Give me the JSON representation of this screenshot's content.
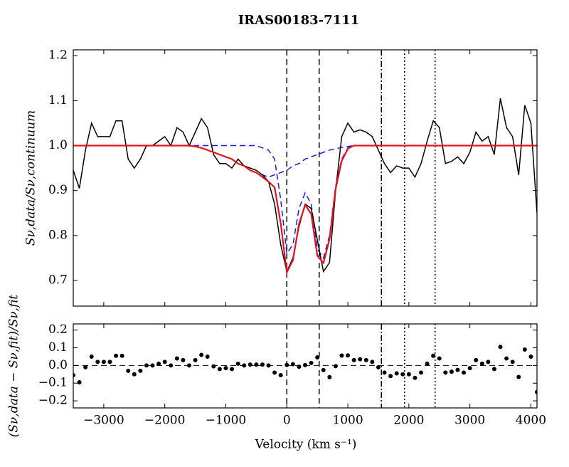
{
  "chart_data": [
    {
      "type": "line",
      "title": "IRAS00183-7111",
      "ylabel": "Sν,data/Sν,continuum",
      "xlim": [
        -3500,
        4100
      ],
      "ylim": [
        0.643,
        1.213
      ],
      "xticks": [
        -3000,
        -2000,
        -1000,
        0,
        1000,
        2000,
        3000,
        4000
      ],
      "yticks": [
        0.7,
        0.8,
        0.9,
        {
          "value": 1,
          "label": "1.0"
        },
        1.1,
        1.2
      ],
      "x": [
        -3500,
        -3400,
        -3300,
        -3200,
        -3100,
        -3000,
        -2900,
        -2800,
        -2700,
        -2600,
        -2500,
        -2400,
        -2300,
        -2200,
        -2100,
        -2000,
        -1900,
        -1800,
        -1700,
        -1600,
        -1500,
        -1400,
        -1300,
        -1200,
        -1100,
        -1000,
        -900,
        -800,
        -700,
        -600,
        -500,
        -400,
        -300,
        -200,
        -100,
        0,
        100,
        200,
        300,
        400,
        500,
        600,
        700,
        800,
        900,
        1000,
        1100,
        1200,
        1300,
        1400,
        1500,
        1600,
        1700,
        1800,
        1900,
        2000,
        2100,
        2200,
        2300,
        2400,
        2500,
        2600,
        2700,
        2800,
        2900,
        3000,
        3100,
        3200,
        3300,
        3400,
        3500,
        3600,
        3700,
        3800,
        3900,
        4000,
        4100
      ],
      "series": [
        {
          "color": "#1a1ad6",
          "style": "dashed",
          "width": 1.5,
          "values": [
            1,
            1,
            1,
            1,
            1,
            1,
            1,
            1,
            1,
            1,
            1,
            1,
            1,
            1,
            1,
            1,
            1,
            1,
            1,
            1,
            0.998,
            0.995,
            0.99,
            0.985,
            0.98,
            0.975,
            0.97,
            0.96,
            0.955,
            0.945,
            0.94,
            0.935,
            0.93,
            0.935,
            0.94,
            0.945,
            0.955,
            0.96,
            0.97,
            0.975,
            0.98,
            0.985,
            0.99,
            0.993,
            0.996,
            0.998,
            1,
            1,
            1,
            1,
            1,
            1,
            1,
            1,
            1,
            1,
            1,
            1,
            1,
            1,
            1,
            1,
            1,
            1,
            1,
            1,
            1,
            1,
            1,
            1,
            1,
            1,
            1,
            1,
            1,
            1,
            1
          ]
        },
        {
          "color": "#1a1ad6",
          "style": "dashed",
          "width": 1.5,
          "values": [
            1,
            1,
            1,
            1,
            1,
            1,
            1,
            1,
            1,
            1,
            1,
            1,
            1,
            1,
            1,
            1,
            1,
            1,
            1,
            1,
            1,
            1,
            1,
            1,
            1,
            1,
            1,
            1,
            1,
            1,
            1,
            0.995,
            0.99,
            0.97,
            0.88,
            0.76,
            0.78,
            0.86,
            0.895,
            0.87,
            0.77,
            0.75,
            0.8,
            0.91,
            0.97,
            0.995,
            1,
            1,
            1,
            1,
            1,
            1,
            1,
            1,
            1,
            1,
            1,
            1,
            1,
            1,
            1,
            1,
            1,
            1,
            1,
            1,
            1,
            1,
            1,
            1,
            1,
            1,
            1,
            1,
            1,
            1,
            1
          ]
        },
        {
          "color": "#000000",
          "style": "solid",
          "width": 1.5,
          "values": [
            0.945,
            0.905,
            0.99,
            1.05,
            1.02,
            1.02,
            1.02,
            1.055,
            1.055,
            0.97,
            0.95,
            0.97,
            1.0,
            1.0,
            1.01,
            1.02,
            1.0,
            1.04,
            1.03,
            1.0,
            1.03,
            1.06,
            1.04,
            0.98,
            0.96,
            0.96,
            0.95,
            0.97,
            0.955,
            0.95,
            0.945,
            0.935,
            0.92,
            0.87,
            0.78,
            0.72,
            0.75,
            0.82,
            0.87,
            0.86,
            0.79,
            0.72,
            0.74,
            0.9,
            1.02,
            1.05,
            1.03,
            1.035,
            1.03,
            1.02,
            0.99,
            0.96,
            0.94,
            0.955,
            0.95,
            0.95,
            0.93,
            0.96,
            1.01,
            1.055,
            1.04,
            0.96,
            0.965,
            0.975,
            0.96,
            0.985,
            1.03,
            1.01,
            1.02,
            0.98,
            1.105,
            1.04,
            1.02,
            0.935,
            1.09,
            1.05,
            0.85
          ]
        },
        {
          "color": "#e0141e",
          "style": "solid",
          "width": 2.2,
          "values": [
            1,
            1,
            1,
            1,
            1,
            1,
            1,
            1,
            1,
            1,
            1,
            1,
            1,
            1,
            1,
            1,
            1,
            1,
            1,
            1,
            0.998,
            0.995,
            0.99,
            0.985,
            0.98,
            0.975,
            0.97,
            0.96,
            0.955,
            0.945,
            0.94,
            0.93,
            0.92,
            0.907,
            0.827,
            0.718,
            0.745,
            0.826,
            0.868,
            0.848,
            0.755,
            0.739,
            0.792,
            0.904,
            0.966,
            0.993,
            1,
            1,
            1,
            1,
            1,
            1,
            1,
            1,
            1,
            1,
            1,
            1,
            1,
            1,
            1,
            1,
            1,
            1,
            1,
            1,
            1,
            1,
            1,
            1,
            1,
            1,
            1,
            1,
            1,
            1,
            1
          ]
        }
      ],
      "vlines": [
        {
          "x": 0,
          "style": "dashed"
        },
        {
          "x": 530,
          "style": "dashed"
        },
        {
          "x": 1550,
          "style": "dashdot"
        },
        {
          "x": 1930,
          "style": "dotted"
        },
        {
          "x": 2430,
          "style": "dotted"
        }
      ]
    },
    {
      "type": "scatter",
      "xlabel": "Velocity (km s⁻¹)",
      "ylabel": "(Sν,data − Sν,fit)/Sν,fit",
      "xlim": [
        -3500,
        4100
      ],
      "ylim": [
        -0.24,
        0.235
      ],
      "xticks": [
        {
          "value": -3000,
          "label": "−3000"
        },
        {
          "value": -2000,
          "label": "−2000"
        },
        {
          "value": -1000,
          "label": "−1000"
        },
        0,
        1000,
        2000,
        3000,
        4000
      ],
      "yticks": [
        {
          "value": -0.2,
          "label": "−0.2"
        },
        {
          "value": -0.1,
          "label": "−0.1"
        },
        {
          "value": 0,
          "label": "0.0"
        },
        0.1,
        0.2
      ],
      "x": [
        -3500,
        -3400,
        -3300,
        -3200,
        -3100,
        -3000,
        -2900,
        -2800,
        -2700,
        -2600,
        -2500,
        -2400,
        -2300,
        -2200,
        -2100,
        -2000,
        -1900,
        -1800,
        -1700,
        -1600,
        -1500,
        -1400,
        -1300,
        -1200,
        -1100,
        -1000,
        -900,
        -800,
        -700,
        -600,
        -500,
        -400,
        -300,
        -200,
        -100,
        0,
        100,
        200,
        300,
        400,
        500,
        600,
        700,
        800,
        900,
        1000,
        1100,
        1200,
        1300,
        1400,
        1500,
        1600,
        1700,
        1800,
        1900,
        2000,
        2100,
        2200,
        2300,
        2400,
        2500,
        2600,
        2700,
        2800,
        2900,
        3000,
        3100,
        3200,
        3300,
        3400,
        3500,
        3600,
        3700,
        3800,
        3900,
        4000,
        4100
      ],
      "color": "#000000",
      "values": [
        -0.055,
        -0.095,
        -0.01,
        0.05,
        0.02,
        0.02,
        0.02,
        0.055,
        0.055,
        -0.03,
        -0.05,
        -0.03,
        0.0,
        0.0,
        0.01,
        0.02,
        0.0,
        0.04,
        0.03,
        0.0,
        0.03,
        0.06,
        0.05,
        -0.005,
        -0.02,
        -0.015,
        -0.02,
        0.01,
        0.0,
        0.005,
        0.005,
        0.005,
        0.0,
        -0.04,
        -0.055,
        0.003,
        0.007,
        -0.007,
        0.002,
        0.014,
        0.046,
        -0.026,
        -0.066,
        -0.004,
        0.056,
        0.057,
        0.03,
        0.035,
        0.03,
        0.02,
        -0.01,
        -0.04,
        -0.06,
        -0.045,
        -0.05,
        -0.05,
        -0.07,
        -0.04,
        0.01,
        0.055,
        0.04,
        -0.04,
        -0.035,
        -0.025,
        -0.04,
        -0.015,
        0.03,
        0.01,
        0.02,
        -0.02,
        0.105,
        0.04,
        0.02,
        -0.065,
        0.09,
        0.05,
        -0.15
      ],
      "hlines": [
        {
          "y": 0,
          "style": "dashed"
        }
      ]
    }
  ]
}
